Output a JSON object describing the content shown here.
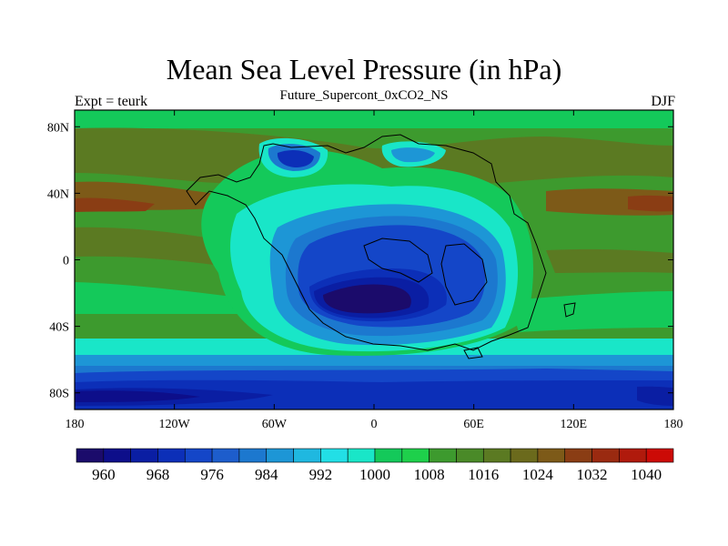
{
  "chart_data": {
    "type": "heatmap",
    "title": "Mean Sea Level Pressure (in hPa)",
    "subtitle": "Future_Supercont_0xCO2_NS",
    "left_string": "Expt = teurk",
    "right_string": "DJF",
    "x_ticks": [
      {
        "value": -180,
        "label": "180"
      },
      {
        "value": -120,
        "label": "120W"
      },
      {
        "value": -60,
        "label": "60W"
      },
      {
        "value": 0,
        "label": "0"
      },
      {
        "value": 60,
        "label": "60E"
      },
      {
        "value": 120,
        "label": "120E"
      },
      {
        "value": 180,
        "label": "180"
      }
    ],
    "y_ticks": [
      {
        "value": 80,
        "label": "80N"
      },
      {
        "value": 40,
        "label": "40N"
      },
      {
        "value": 0,
        "label": "0"
      },
      {
        "value": -40,
        "label": "40S"
      },
      {
        "value": -80,
        "label": "80S"
      }
    ],
    "xlim": [
      -180,
      180
    ],
    "ylim": [
      -90,
      90
    ],
    "colorbar": {
      "levels": [
        956,
        960,
        964,
        968,
        972,
        976,
        980,
        984,
        988,
        992,
        996,
        1000,
        1004,
        1008,
        1012,
        1016,
        1020,
        1024,
        1028,
        1032,
        1036,
        1040,
        1044
      ],
      "colors": [
        "#1b0b6b",
        "#0d0e8a",
        "#0a1ea3",
        "#0c2fb8",
        "#1446c8",
        "#1d5dcc",
        "#1c78cf",
        "#1d96d6",
        "#1fb8e0",
        "#22dfe6",
        "#19e6c8",
        "#14c95a",
        "#1ed04b",
        "#3d9a2e",
        "#4a8a28",
        "#5b7a22",
        "#6b6a1c",
        "#7d5a18",
        "#8a3d14",
        "#9a2a10",
        "#b01a0c",
        "#cc0a06"
      ],
      "labels": [
        "960",
        "968",
        "976",
        "984",
        "992",
        "1000",
        "1008",
        "1016",
        "1024",
        "1032",
        "1040"
      ]
    }
  }
}
